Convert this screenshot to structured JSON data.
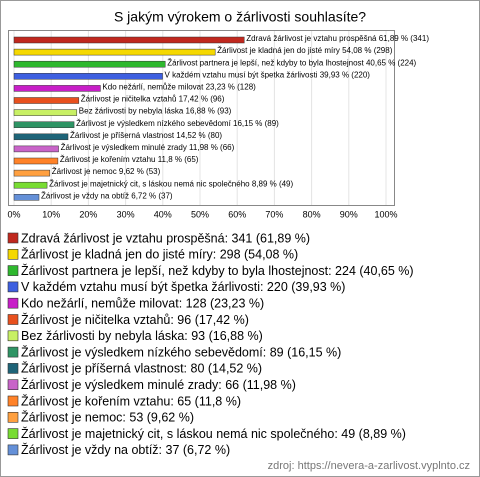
{
  "chart_data": {
    "type": "bar",
    "orientation": "horizontal",
    "title": "S jakým výrokem o žárlivosti souhlasíte?",
    "values": [
      61.89,
      54.08,
      40.65,
      39.93,
      23.23,
      17.42,
      16.88,
      16.15,
      14.52,
      11.98,
      11.8,
      9.62,
      8.89,
      6.72
    ],
    "value_labels": [
      "Zdravá žárlivost je vztahu prospěšná 61,89 % (341)",
      "Žárlivost je kladná jen do jisté míry 54,08 % (298)",
      "Žárlivost partnera je lepší, než kdyby to byla lhostejnost 40,65 % (224)",
      "V každém vztahu musí být špetka žárlivosti 39,93 % (220)",
      "Kdo nežárlí, nemůže milovat 23,23 % (128)",
      "Žárlivost je ničitelka vztahů 17,42 % (96)",
      "Bez žárlivosti by nebyla láska 16,88 % (93)",
      "Žárlivost je výsledkem nízkého sebevědomí 16,15 % (89)",
      "Žárlivost je příšerná vlastnost 14,52 % (80)",
      "Žárlivost je výsledkem minulé zrady 11,98 % (66)",
      "Žárlivost je kořením vztahu 11,8 % (65)",
      "Žárlivost je nemoc 9,62 % (53)",
      "Žárlivost je majetnický cit, s láskou nemá nic společného 8,89 % (49)",
      "Žárlivost je vždy na obtíž 6,72 % (37)"
    ],
    "legend_labels": [
      "Zdravá žárlivost je vztahu prospěšná: 341 (61,89 %)",
      "Žárlivost je kladná jen do jisté míry: 298 (54,08 %)",
      "Žárlivost partnera je lepší, než kdyby to byla lhostejnost: 224 (40,65 %)",
      "V každém vztahu musí být špetka žárlivosti: 220 (39,93 %)",
      "Kdo nežárlí, nemůže milovat: 128 (23,23 %)",
      "Žárlivost je ničitelka vztahů: 96 (17,42 %)",
      "Bez žárlivosti by nebyla láska: 93 (16,88 %)",
      "Žárlivost je výsledkem nízkého sebevědomí: 89 (16,15 %)",
      "Žárlivost je příšerná vlastnost: 80 (14,52 %)",
      "Žárlivost je výsledkem minulé zrady: 66 (11,98 %)",
      "Žárlivost je kořením vztahu: 65 (11,8 %)",
      "Žárlivost je nemoc: 53 (9,62 %)",
      "Žárlivost je majetnický cit, s láskou nemá nic společného: 49 (8,89 %)",
      "Žárlivost je vždy na obtíž: 37 (6,72 %)"
    ],
    "colors": [
      "#c0281e",
      "#f5d800",
      "#2eb82e",
      "#3d5fe0",
      "#c81ec8",
      "#e8501e",
      "#c8f064",
      "#2e9464",
      "#1e6478",
      "#c864c8",
      "#ff8228",
      "#ffa040",
      "#78dc32",
      "#6490d8"
    ],
    "xlim": [
      0,
      100
    ],
    "xticks": [
      {
        "value": 0,
        "label": "0%"
      },
      {
        "value": 10,
        "label": "10%"
      },
      {
        "value": 20,
        "label": "20%"
      },
      {
        "value": 30,
        "label": "30%"
      },
      {
        "value": 40,
        "label": "40%"
      },
      {
        "value": 50,
        "label": "50%"
      },
      {
        "value": 60,
        "label": "60%"
      },
      {
        "value": 70,
        "label": "70%"
      },
      {
        "value": 80,
        "label": "80%"
      },
      {
        "value": 90,
        "label": "90%"
      },
      {
        "value": 100,
        "label": "100%"
      }
    ],
    "grid": true,
    "source": "zdroj: https://nevera-a-zarlivost.vyplnto.cz"
  }
}
